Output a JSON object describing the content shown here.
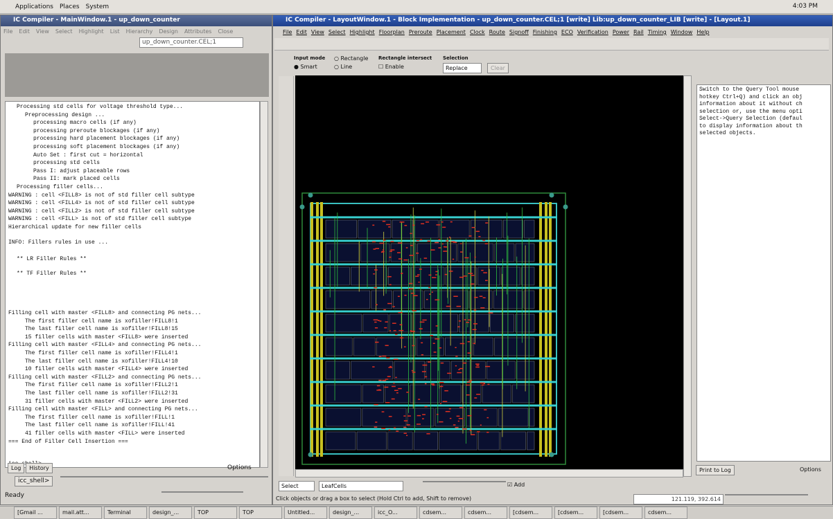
{
  "top_bar": {
    "menus": [
      "Applications",
      "Places",
      "System"
    ],
    "clock": "4:03 PM"
  },
  "main_window": {
    "title": "IC Compiler - MainWindow.1 - up_down_counter",
    "menu": [
      "File",
      "Edit",
      "View",
      "Select",
      "Highlight",
      "List",
      "Hierarchy",
      "Design",
      "Attributes",
      "Close"
    ],
    "design_field": "up_down_counter.CEL;1",
    "log": {
      "processing": [
        "Processing std cells for voltage threshold type...",
        "Preprocessing design ...",
        "processing macro cells (if any)",
        "processing preroute blockages (if any)",
        "processing hard placement blockages (if any)",
        "processing soft placement blockages (if any)",
        "Auto Set : first cut = horizontal",
        "processing std cells",
        "Pass I: adjust placeable rows",
        "Pass II: mark placed cells",
        "Processing filler cells...",
        "WARNING : cell <FILL8> is not of std filler cell subtype",
        "WARNING : cell <FILL4> is not of std filler cell subtype",
        "WARNING : cell <FILL2> is not of std filler cell subtype",
        "WARNING : cell <FILL> is not of std filler cell subtype",
        "Hierarchical update for new filler cells"
      ],
      "info": "INFO: Fillers rules in use ...",
      "rules": [
        "** LR Filler Rules **",
        "** TF Filler Rules **"
      ],
      "filling": [
        "Filling cell with master <FILL8> and connecting PG nets...",
        "The first filler cell name is xofiller!FILL8!1",
        "The last filler cell name is xofiller!FILL8!15",
        "15 filler cells with master <FILL8> were inserted",
        "Filling cell with master <FILL4> and connecting PG nets...",
        "The first filler cell name is xofiller!FILL4!1",
        "The last filler cell name is xofiller!FILL4!10",
        "10 filler cells with master <FILL4> were inserted",
        "Filling cell with master <FILL2> and connecting PG nets...",
        "The first filler cell name is xofiller!FILL2!1",
        "The last filler cell name is xofiller!FILL2!31",
        "31 filler cells with master <FILL2> were inserted",
        "Filling cell with master <FILL> and connecting PG nets...",
        "The first filler cell name is xofiller!FILL!1",
        "The last filler cell name is xofiller!FILL!41",
        "41 filler cells with master <FILL> were inserted",
        "=== End of Filler Cell Insertion ==="
      ],
      "prompt": "icc_shell>"
    },
    "tabs": [
      "Log",
      "History"
    ],
    "options": "Options",
    "shell_label": "icc_shell>",
    "status": "Ready"
  },
  "layout_window": {
    "title": "IC Compiler - LayoutWindow.1 - Block Implementation - up_down_counter.CEL;1 [write]    Lib:up_down_counter_LIB [write] - [Layout.1]",
    "menu": [
      "File",
      "Edit",
      "View",
      "Select",
      "Highlight",
      "Floorplan",
      "Preroute",
      "Placement",
      "Clock",
      "Route",
      "Signoff",
      "Finishing",
      "ECO",
      "Verification",
      "Power",
      "Rail",
      "Timing",
      "Window",
      "Help"
    ],
    "toolbar": {
      "input_mode": "Input mode",
      "rectangle": "Rectangle",
      "smart": "Smart",
      "line": "Line",
      "rect_intersect": "Rectangle intersect",
      "enable": "Enable",
      "selection": "Selection",
      "replace": "Replace",
      "clear": "Clear"
    },
    "query_text": [
      "Switch to the Query Tool mouse",
      "hotkey Ctrl+Q) and click an obj",
      "information about it without ch",
      "selection or, use the menu opti",
      "Select->Query Selection (defaul",
      "to display information about th",
      "selected objects."
    ],
    "print_to_log": "Print to Log",
    "options": "Options",
    "bottom": {
      "select": "Select",
      "leaf_cells": "LeafCells",
      "add": "Add"
    },
    "status": "Click objects or drag a box to select (Hold Ctrl to add, Shift to remove)",
    "coords": "121.119, 392.614"
  },
  "taskbar": [
    "[Gmail ...",
    "mail.att...",
    "Terminal",
    "design_...",
    "TOP",
    "TOP",
    "Untitled...",
    "design_...",
    "icc_O...",
    "cdsem...",
    "cdsem...",
    "[cdsem...",
    "[cdsem...",
    "[cdsem...",
    "cdsem..."
  ]
}
